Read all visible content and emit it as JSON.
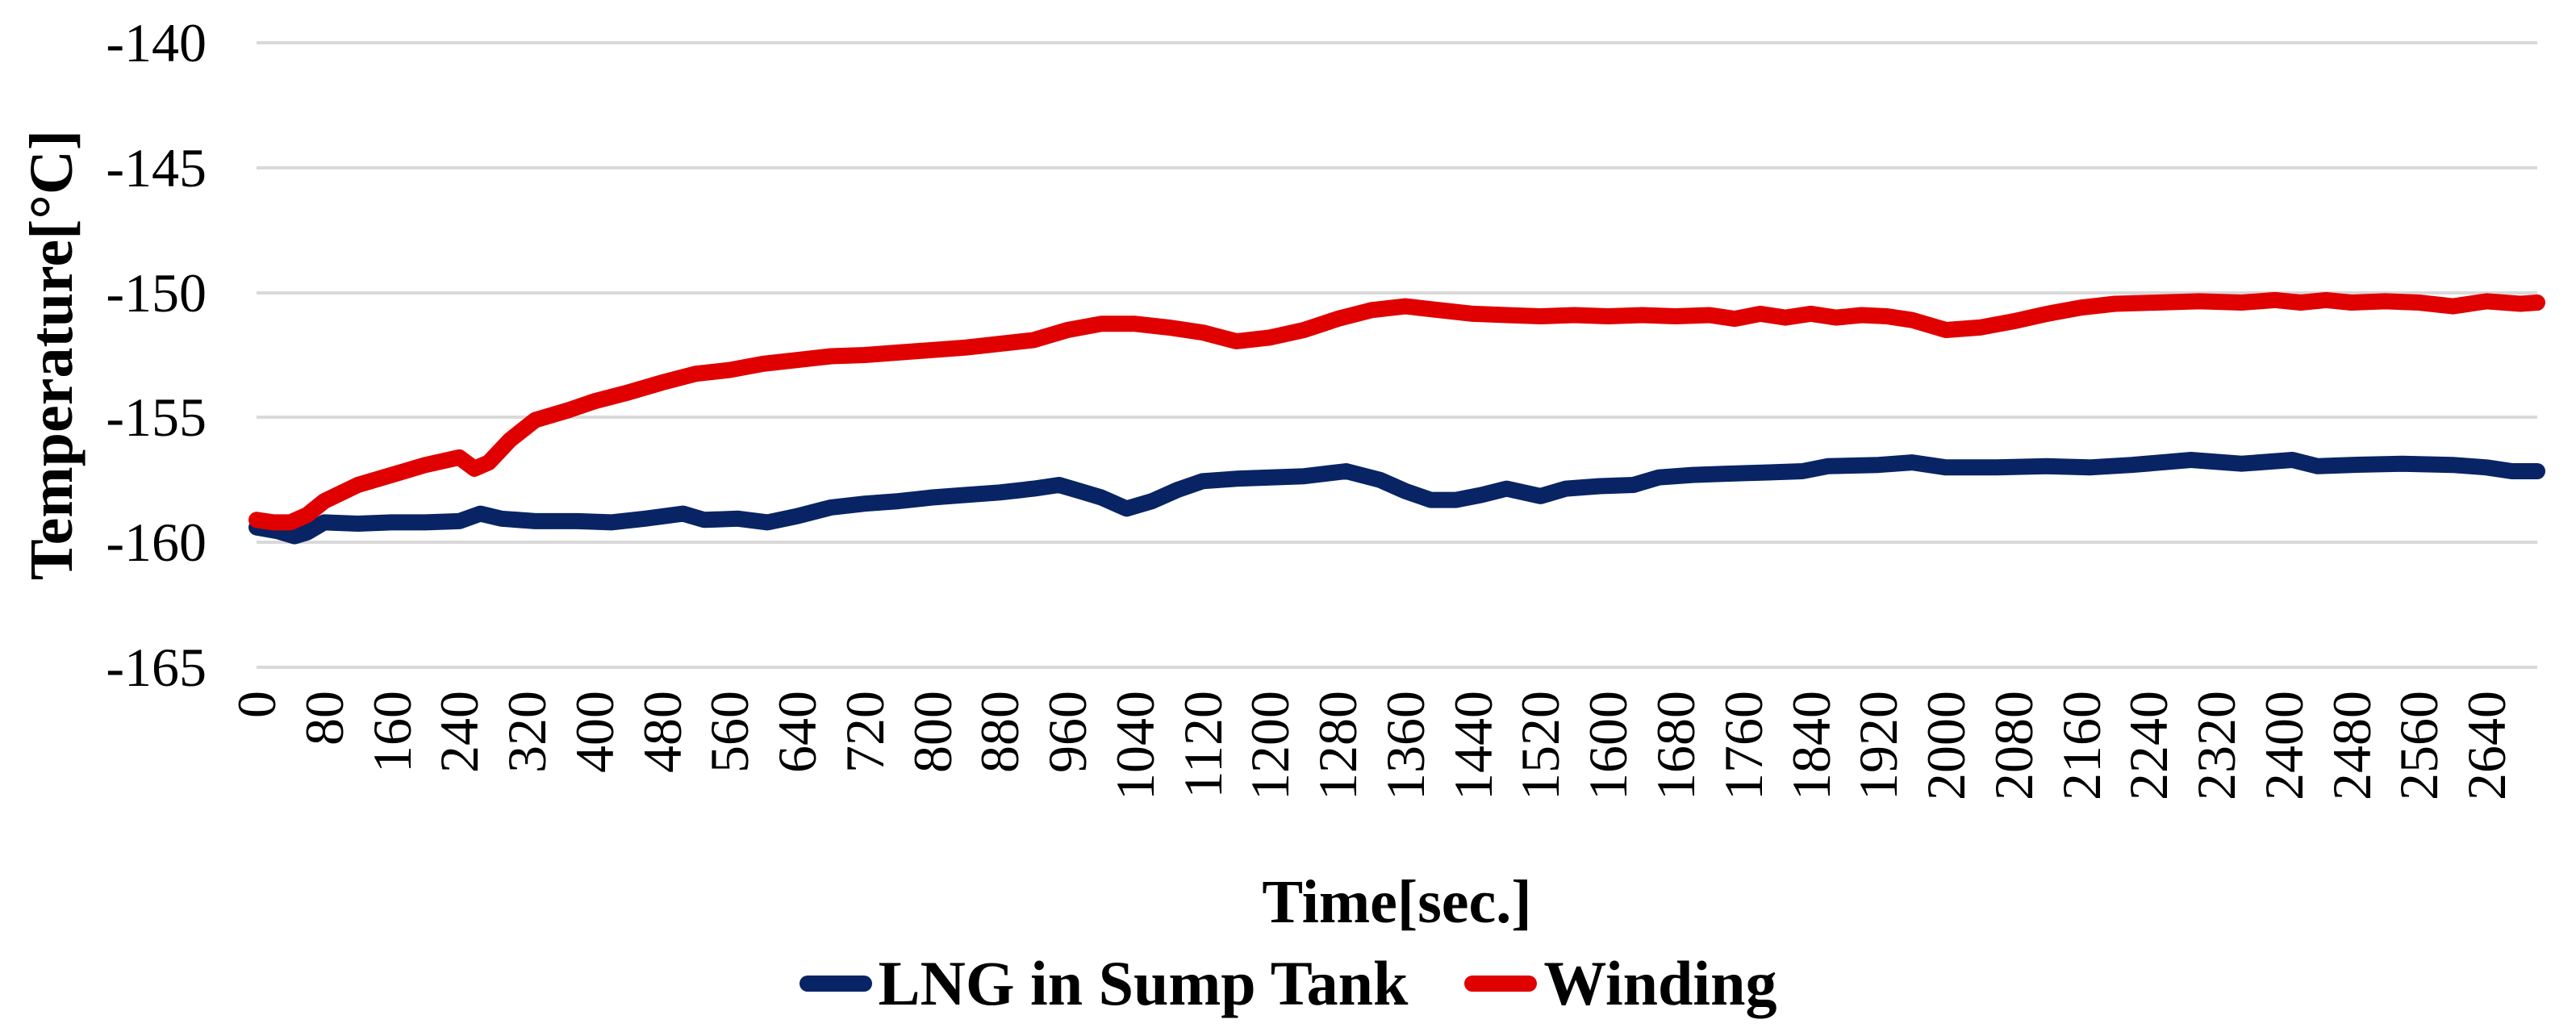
{
  "chart_data": {
    "type": "line",
    "title": "",
    "xlabel": "Time[sec.]",
    "ylabel": "Temperature[°C]",
    "xlim": [
      0,
      2700
    ],
    "ylim": [
      -165,
      -140
    ],
    "x_tick_start": 0,
    "x_tick_step": 80,
    "x_tick_end": 2640,
    "y_ticks": [
      -140,
      -145,
      -150,
      -155,
      -160,
      -165
    ],
    "grid": true,
    "gridline_color": "#d9d9d9",
    "background_color": "#ffffff",
    "text_color": "#000000",
    "legend_position": "bottom",
    "series": [
      {
        "name": "LNG in Sump Tank",
        "color": "#082464",
        "points": [
          [
            0,
            -159.4
          ],
          [
            25,
            -159.55
          ],
          [
            45,
            -159.75
          ],
          [
            60,
            -159.6
          ],
          [
            80,
            -159.2
          ],
          [
            120,
            -159.25
          ],
          [
            160,
            -159.2
          ],
          [
            200,
            -159.2
          ],
          [
            240,
            -159.15
          ],
          [
            265,
            -158.85
          ],
          [
            290,
            -159.05
          ],
          [
            330,
            -159.15
          ],
          [
            380,
            -159.15
          ],
          [
            420,
            -159.2
          ],
          [
            460,
            -159.05
          ],
          [
            505,
            -158.85
          ],
          [
            530,
            -159.1
          ],
          [
            570,
            -159.05
          ],
          [
            605,
            -159.2
          ],
          [
            640,
            -158.95
          ],
          [
            680,
            -158.6
          ],
          [
            720,
            -158.45
          ],
          [
            760,
            -158.35
          ],
          [
            800,
            -158.2
          ],
          [
            840,
            -158.1
          ],
          [
            880,
            -158.0
          ],
          [
            920,
            -157.85
          ],
          [
            950,
            -157.7
          ],
          [
            975,
            -157.95
          ],
          [
            1000,
            -158.2
          ],
          [
            1030,
            -158.65
          ],
          [
            1060,
            -158.35
          ],
          [
            1090,
            -157.9
          ],
          [
            1120,
            -157.55
          ],
          [
            1160,
            -157.45
          ],
          [
            1200,
            -157.4
          ],
          [
            1240,
            -157.35
          ],
          [
            1290,
            -157.15
          ],
          [
            1330,
            -157.5
          ],
          [
            1360,
            -157.95
          ],
          [
            1390,
            -158.3
          ],
          [
            1420,
            -158.3
          ],
          [
            1450,
            -158.1
          ],
          [
            1480,
            -157.85
          ],
          [
            1520,
            -158.15
          ],
          [
            1550,
            -157.85
          ],
          [
            1590,
            -157.75
          ],
          [
            1630,
            -157.7
          ],
          [
            1660,
            -157.4
          ],
          [
            1700,
            -157.3
          ],
          [
            1740,
            -157.25
          ],
          [
            1790,
            -157.2
          ],
          [
            1830,
            -157.15
          ],
          [
            1860,
            -156.95
          ],
          [
            1920,
            -156.9
          ],
          [
            1960,
            -156.8
          ],
          [
            2000,
            -157.0
          ],
          [
            2060,
            -157.0
          ],
          [
            2120,
            -156.95
          ],
          [
            2170,
            -157.0
          ],
          [
            2220,
            -156.9
          ],
          [
            2290,
            -156.7
          ],
          [
            2350,
            -156.85
          ],
          [
            2410,
            -156.7
          ],
          [
            2440,
            -156.95
          ],
          [
            2480,
            -156.9
          ],
          [
            2540,
            -156.85
          ],
          [
            2600,
            -156.9
          ],
          [
            2640,
            -157.0
          ],
          [
            2670,
            -157.15
          ],
          [
            2700,
            -157.15
          ]
        ]
      },
      {
        "name": "Winding",
        "color": "#e00000",
        "points": [
          [
            0,
            -159.1
          ],
          [
            20,
            -159.2
          ],
          [
            40,
            -159.2
          ],
          [
            60,
            -158.9
          ],
          [
            80,
            -158.35
          ],
          [
            120,
            -157.7
          ],
          [
            160,
            -157.3
          ],
          [
            200,
            -156.9
          ],
          [
            240,
            -156.6
          ],
          [
            258,
            -157.05
          ],
          [
            275,
            -156.8
          ],
          [
            300,
            -155.9
          ],
          [
            330,
            -155.1
          ],
          [
            370,
            -154.7
          ],
          [
            400,
            -154.35
          ],
          [
            440,
            -154.0
          ],
          [
            480,
            -153.6
          ],
          [
            520,
            -153.25
          ],
          [
            560,
            -153.1
          ],
          [
            600,
            -152.85
          ],
          [
            640,
            -152.7
          ],
          [
            680,
            -152.55
          ],
          [
            720,
            -152.5
          ],
          [
            760,
            -152.4
          ],
          [
            800,
            -152.3
          ],
          [
            840,
            -152.2
          ],
          [
            880,
            -152.05
          ],
          [
            920,
            -151.9
          ],
          [
            960,
            -151.5
          ],
          [
            1000,
            -151.25
          ],
          [
            1040,
            -151.25
          ],
          [
            1080,
            -151.4
          ],
          [
            1120,
            -151.6
          ],
          [
            1160,
            -151.95
          ],
          [
            1200,
            -151.8
          ],
          [
            1240,
            -151.5
          ],
          [
            1280,
            -151.05
          ],
          [
            1320,
            -150.7
          ],
          [
            1360,
            -150.55
          ],
          [
            1400,
            -150.7
          ],
          [
            1440,
            -150.85
          ],
          [
            1480,
            -150.9
          ],
          [
            1520,
            -150.95
          ],
          [
            1560,
            -150.9
          ],
          [
            1600,
            -150.95
          ],
          [
            1640,
            -150.9
          ],
          [
            1680,
            -150.95
          ],
          [
            1720,
            -150.9
          ],
          [
            1750,
            -151.05
          ],
          [
            1780,
            -150.85
          ],
          [
            1810,
            -151.0
          ],
          [
            1840,
            -150.85
          ],
          [
            1870,
            -151.0
          ],
          [
            1900,
            -150.9
          ],
          [
            1930,
            -150.95
          ],
          [
            1960,
            -151.1
          ],
          [
            2000,
            -151.5
          ],
          [
            2040,
            -151.4
          ],
          [
            2080,
            -151.15
          ],
          [
            2120,
            -150.85
          ],
          [
            2160,
            -150.6
          ],
          [
            2200,
            -150.45
          ],
          [
            2250,
            -150.4
          ],
          [
            2300,
            -150.35
          ],
          [
            2350,
            -150.4
          ],
          [
            2390,
            -150.3
          ],
          [
            2420,
            -150.4
          ],
          [
            2450,
            -150.3
          ],
          [
            2480,
            -150.4
          ],
          [
            2520,
            -150.35
          ],
          [
            2560,
            -150.4
          ],
          [
            2600,
            -150.55
          ],
          [
            2640,
            -150.35
          ],
          [
            2680,
            -150.45
          ],
          [
            2700,
            -150.4
          ]
        ]
      }
    ]
  }
}
